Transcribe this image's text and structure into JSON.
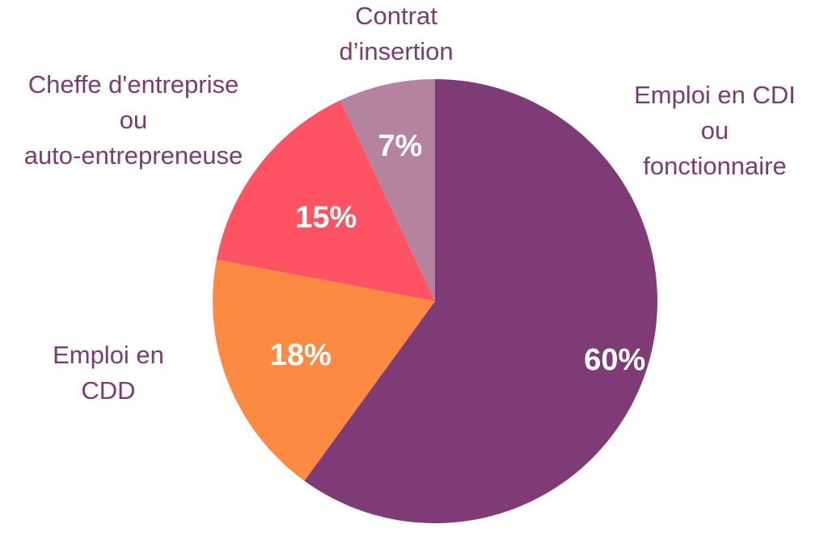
{
  "chart_data": {
    "type": "pie",
    "slices": [
      {
        "label_lines": [
          "Emploi en CDI",
          "ou",
          "fonctionnaire"
        ],
        "value": 60,
        "display": "60%",
        "color": "#7f3b76"
      },
      {
        "label_lines": [
          "Emploi en",
          "CDD"
        ],
        "value": 18,
        "display": "18%",
        "color": "#fd8a42"
      },
      {
        "label_lines": [
          "Cheffe d'entreprise",
          "ou",
          "auto-entrepreneuse"
        ],
        "value": 15,
        "display": "15%",
        "color": "#fd5362"
      },
      {
        "label_lines": [
          "Contrat",
          "d’insertion"
        ],
        "value": 7,
        "display": "7%",
        "color": "#b3839f"
      }
    ],
    "start_angle_deg": 0,
    "direction": "clockwise",
    "label_color": "#7b3b75",
    "value_label_color": "#ffffff"
  }
}
